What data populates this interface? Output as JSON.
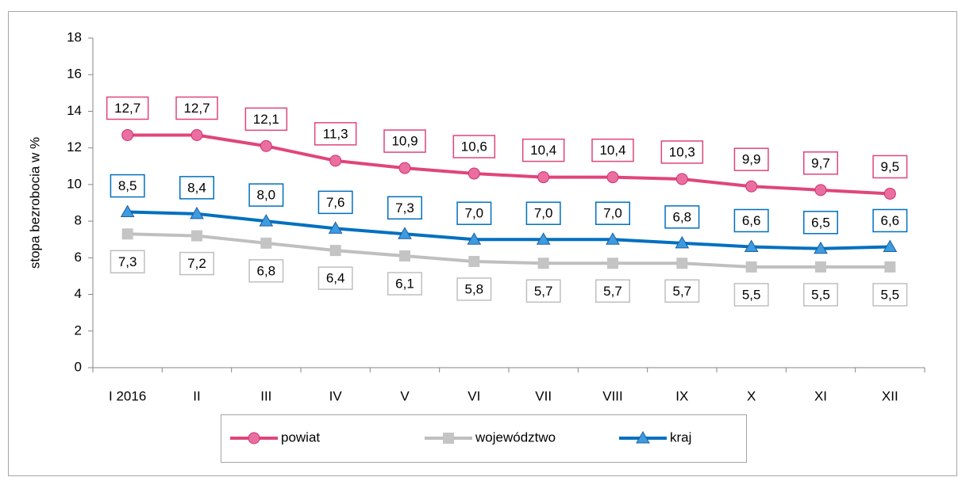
{
  "chart_data": {
    "type": "line",
    "y_label": "stopa bezrobocia w %",
    "categories": [
      "I 2016",
      "II",
      "III",
      "IV",
      "V",
      "VI",
      "VII",
      "VIII",
      "IX",
      "X",
      "XI",
      "XII"
    ],
    "series": [
      {
        "name": "powiat",
        "color": "#e0457b",
        "marker": "circle",
        "marker_color": "#ea6fa0",
        "values": [
          12.7,
          12.7,
          12.1,
          11.3,
          10.9,
          10.6,
          10.4,
          10.4,
          10.3,
          9.9,
          9.7,
          9.5
        ],
        "value_labels": [
          "12,7",
          "12,7",
          "12,1",
          "11,3",
          "10,9",
          "10,6",
          "10,4",
          "10,4",
          "10,3",
          "9,9",
          "9,7",
          "9,5"
        ]
      },
      {
        "name": "województwo",
        "color": "#bfbfbf",
        "marker": "square",
        "marker_color": "#c4c4c4",
        "values": [
          7.3,
          7.2,
          6.8,
          6.4,
          6.1,
          5.8,
          5.7,
          5.7,
          5.7,
          5.5,
          5.5,
          5.5
        ],
        "value_labels": [
          "7,3",
          "7,2",
          "6,8",
          "6,4",
          "6,1",
          "5,8",
          "5,7",
          "5,7",
          "5,7",
          "5,5",
          "5,5",
          "5,5"
        ]
      },
      {
        "name": "kraj",
        "color": "#0070c0",
        "marker": "triangle",
        "marker_color": "#3d9be0",
        "values": [
          8.5,
          8.4,
          8.0,
          7.6,
          7.3,
          7.0,
          7.0,
          7.0,
          6.8,
          6.6,
          6.5,
          6.6
        ],
        "value_labels": [
          "8,5",
          "8,4",
          "8,0",
          "7,6",
          "7,3",
          "7,0",
          "7,0",
          "7,0",
          "6,8",
          "6,6",
          "6,5",
          "6,6"
        ]
      }
    ],
    "ylim": [
      0,
      18
    ],
    "yticks": [
      0,
      2,
      4,
      6,
      8,
      10,
      12,
      14,
      16,
      18
    ],
    "grid": false,
    "legend": "bottom"
  }
}
